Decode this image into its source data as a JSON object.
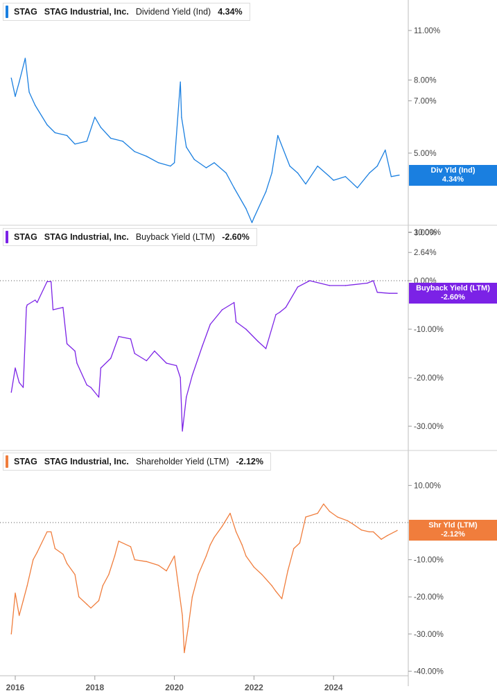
{
  "x_axis": {
    "ticks": [
      "2016",
      "2018",
      "2020",
      "2022",
      "2024"
    ],
    "tick_dates": [
      2016.0,
      2018.0,
      2020.0,
      2022.0,
      2024.0
    ]
  },
  "panels": [
    {
      "ticker": "STAG",
      "company": "STAG Industrial, Inc.",
      "metric": "Dividend Yield (Ind)",
      "value": "4.34%",
      "color": "#1a7fe0",
      "tag": {
        "line1": "Div Yld (Ind)",
        "line2": "4.34%"
      },
      "y_axis": {
        "scale": "log",
        "ticks": [
          "11.00%",
          "8.00%",
          "7.00%",
          "5.00%",
          "3.00%",
          "2.64%"
        ],
        "tick_values": [
          11,
          8,
          7,
          5,
          3,
          2.64
        ],
        "range": [
          2.64,
          14
        ]
      }
    },
    {
      "ticker": "STAG",
      "company": "STAG Industrial, Inc.",
      "metric": "Buyback Yield (LTM)",
      "value": "-2.60%",
      "color": "#7b22e6",
      "tag": {
        "line1": "Buyback Yield (LTM)",
        "line2": "-2.60%"
      },
      "y_axis": {
        "scale": "linear",
        "ticks": [
          "10.00%",
          "0.00%",
          "-10.00%",
          "-20.00%",
          "-30.00%"
        ],
        "tick_values": [
          10,
          0,
          -10,
          -20,
          -30
        ],
        "range": [
          -35,
          10
        ],
        "dotted_zero_line": true
      }
    },
    {
      "ticker": "STAG",
      "company": "STAG Industrial, Inc.",
      "metric": "Shareholder Yield (LTM)",
      "value": "-2.12%",
      "color": "#f07d3c",
      "tag": {
        "line1": "Shr Yld (LTM)",
        "line2": "-2.12%"
      },
      "y_axis": {
        "scale": "linear",
        "ticks": [
          "10.00%",
          "-10.00%",
          "-20.00%",
          "-30.00%",
          "-40.00%"
        ],
        "tick_values": [
          10,
          -10,
          -20,
          -30,
          -40
        ],
        "range": [
          -40,
          15
        ],
        "dotted_zero_line": true
      }
    }
  ],
  "chart_data": [
    {
      "type": "line",
      "title": "Dividend Yield (Ind)",
      "series": [
        {
          "name": "Dividend Yield (Ind)",
          "color": "#1a7fe0",
          "x": [
            2015.9,
            2016.0,
            2016.1,
            2016.25,
            2016.35,
            2016.5,
            2016.8,
            2017.0,
            2017.3,
            2017.5,
            2017.8,
            2018.0,
            2018.15,
            2018.4,
            2018.7,
            2019.0,
            2019.3,
            2019.6,
            2019.9,
            2020.0,
            2020.15,
            2020.18,
            2020.3,
            2020.5,
            2020.8,
            2021.0,
            2021.3,
            2021.5,
            2021.8,
            2021.95,
            2022.0,
            2022.3,
            2022.45,
            2022.6,
            2022.9,
            2023.1,
            2023.3,
            2023.6,
            2023.9,
            2024.0,
            2024.3,
            2024.6,
            2024.9,
            2025.1,
            2025.3,
            2025.45,
            2025.65
          ],
          "y": [
            8.1,
            7.2,
            7.9,
            9.2,
            7.4,
            6.8,
            6.0,
            5.7,
            5.6,
            5.3,
            5.4,
            6.3,
            5.9,
            5.5,
            5.4,
            5.05,
            4.9,
            4.7,
            4.6,
            4.7,
            7.9,
            6.3,
            5.2,
            4.8,
            4.55,
            4.7,
            4.4,
            4.0,
            3.5,
            3.2,
            3.3,
            3.9,
            4.4,
            5.6,
            4.6,
            4.4,
            4.1,
            4.6,
            4.3,
            4.2,
            4.3,
            4.0,
            4.4,
            4.6,
            5.1,
            4.3,
            4.34
          ]
        }
      ],
      "xlabel": "",
      "ylabel": "",
      "ylim": [
        2.64,
        14
      ]
    },
    {
      "type": "line",
      "title": "Buyback Yield (LTM)",
      "series": [
        {
          "name": "Buyback Yield (LTM)",
          "color": "#7b22e6",
          "x": [
            2015.9,
            2016.0,
            2016.1,
            2016.2,
            2016.28,
            2016.3,
            2016.5,
            2016.55,
            2016.8,
            2016.9,
            2016.95,
            2017.2,
            2017.3,
            2017.5,
            2017.55,
            2017.8,
            2017.9,
            2018.1,
            2018.15,
            2018.4,
            2018.6,
            2018.9,
            2019.0,
            2019.3,
            2019.5,
            2019.8,
            2020.05,
            2020.15,
            2020.2,
            2020.3,
            2020.45,
            2020.7,
            2020.9,
            2021.2,
            2021.5,
            2021.55,
            2021.8,
            2022.1,
            2022.3,
            2022.55,
            2022.65,
            2022.8,
            2023.1,
            2023.4,
            2023.9,
            2024.3,
            2024.85,
            2025.0,
            2025.1,
            2025.4,
            2025.6
          ],
          "y": [
            -23.0,
            -18.0,
            -21.0,
            -22.0,
            -5.5,
            -5.0,
            -4.0,
            -4.5,
            -0.2,
            -0.2,
            -6.0,
            -5.5,
            -13.0,
            -14.5,
            -17.0,
            -21.5,
            -22.0,
            -24.0,
            -18.0,
            -16.0,
            -11.5,
            -12.0,
            -15.0,
            -16.5,
            -14.5,
            -17.0,
            -17.5,
            -20.0,
            -31.0,
            -24.0,
            -19.5,
            -13.5,
            -9.0,
            -6.0,
            -4.5,
            -8.5,
            -10.0,
            -12.5,
            -14.0,
            -7.0,
            -6.5,
            -5.5,
            -1.3,
            0.0,
            -1.0,
            -1.0,
            -0.5,
            0.0,
            -2.4,
            -2.6,
            -2.6
          ]
        }
      ],
      "xlabel": "",
      "ylabel": "",
      "ylim": [
        -35,
        10
      ]
    },
    {
      "type": "line",
      "title": "Shareholder Yield (LTM)",
      "series": [
        {
          "name": "Shareholder Yield (LTM)",
          "color": "#f07d3c",
          "x": [
            2015.9,
            2016.0,
            2016.1,
            2016.2,
            2016.3,
            2016.45,
            2016.55,
            2016.8,
            2016.9,
            2017.0,
            2017.2,
            2017.3,
            2017.5,
            2017.6,
            2017.8,
            2017.9,
            2018.1,
            2018.2,
            2018.35,
            2018.5,
            2018.6,
            2018.9,
            2019.0,
            2019.3,
            2019.6,
            2019.8,
            2020.0,
            2020.1,
            2020.2,
            2020.25,
            2020.35,
            2020.45,
            2020.6,
            2020.8,
            2020.9,
            2021.0,
            2021.2,
            2021.4,
            2021.55,
            2021.7,
            2021.8,
            2022.0,
            2022.2,
            2022.45,
            2022.55,
            2022.7,
            2022.85,
            2023.0,
            2023.15,
            2023.3,
            2023.6,
            2023.75,
            2023.9,
            2024.1,
            2024.35,
            2024.5,
            2024.7,
            2024.9,
            2025.0,
            2025.2,
            2025.35,
            2025.6
          ],
          "y": [
            -30.0,
            -19.0,
            -25.0,
            -21.0,
            -17.0,
            -10.0,
            -8.0,
            -2.5,
            -2.5,
            -7.0,
            -8.5,
            -11.0,
            -14.0,
            -20.0,
            -22.0,
            -23.0,
            -21.0,
            -17.0,
            -14.0,
            -9.0,
            -5.0,
            -6.5,
            -10.0,
            -10.5,
            -11.5,
            -13.0,
            -9.0,
            -17.0,
            -25.0,
            -35.0,
            -28.0,
            -20.0,
            -14.0,
            -9.0,
            -6.0,
            -4.0,
            -1.0,
            2.5,
            -2.5,
            -6.0,
            -9.0,
            -12.0,
            -14.0,
            -17.0,
            -18.5,
            -20.5,
            -13.0,
            -7.0,
            -5.5,
            1.5,
            2.5,
            5.0,
            3.0,
            1.5,
            0.5,
            -0.5,
            -2.0,
            -2.5,
            -2.5,
            -4.5,
            -3.5,
            -2.12
          ]
        }
      ],
      "xlabel": "",
      "ylabel": "",
      "ylim": [
        -40,
        15
      ]
    }
  ]
}
